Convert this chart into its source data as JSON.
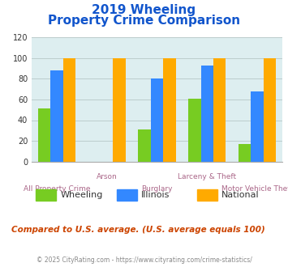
{
  "title_line1": "2019 Wheeling",
  "title_line2": "Property Crime Comparison",
  "categories": [
    "All Property Crime",
    "Arson",
    "Burglary",
    "Larceny & Theft",
    "Motor Vehicle Theft"
  ],
  "series": {
    "Wheeling": [
      51,
      0,
      31,
      61,
      17
    ],
    "Illinois": [
      88,
      0,
      80,
      93,
      68
    ],
    "National": [
      100,
      100,
      100,
      100,
      100
    ]
  },
  "colors": {
    "Wheeling": "#77cc22",
    "Illinois": "#3388ff",
    "National": "#ffaa00"
  },
  "ylim": [
    0,
    120
  ],
  "yticks": [
    0,
    20,
    40,
    60,
    80,
    100,
    120
  ],
  "row1_labels": {
    "1": "Arson",
    "3": "Larceny & Theft"
  },
  "row2_labels": {
    "0": "All Property Crime",
    "2": "Burglary",
    "4": "Motor Vehicle Theft"
  },
  "footnote": "Compared to U.S. average. (U.S. average equals 100)",
  "copyright": "© 2025 CityRating.com - https://www.cityrating.com/crime-statistics/",
  "background_color": "#ddeef0",
  "fig_background": "#ffffff",
  "title_color": "#1155cc",
  "footnote_color": "#cc4400",
  "copyright_color": "#888888",
  "tick_label_color": "#aa6688",
  "bar_width": 0.25
}
